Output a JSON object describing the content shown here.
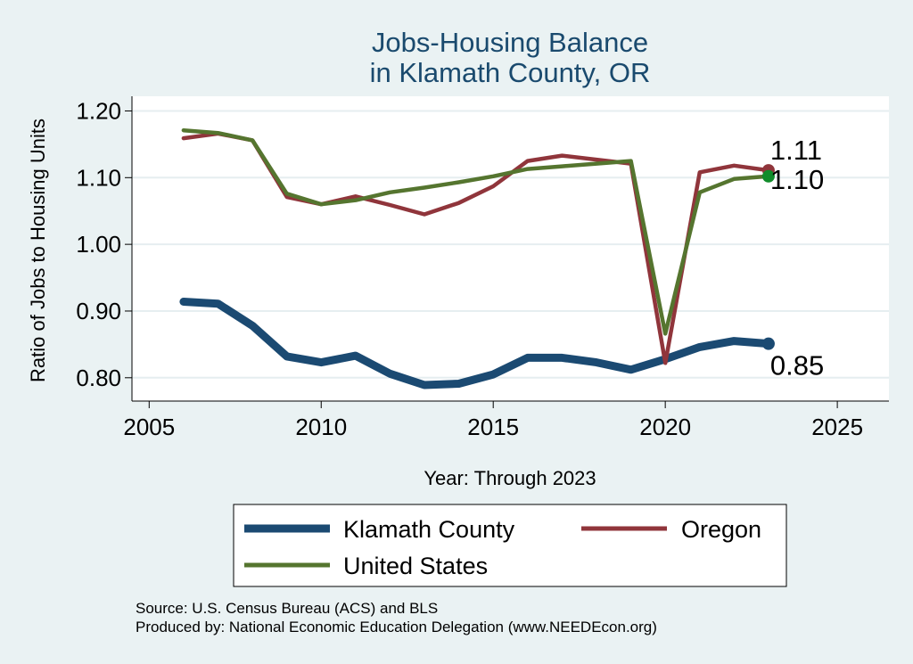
{
  "chart_data": {
    "type": "line",
    "title_lines": [
      "Jobs-Housing Balance",
      "in Klamath County, OR"
    ],
    "xlabel": "Year: Through 2023",
    "ylabel": "Ratio of Jobs to Housing Units",
    "xlim": [
      2004.5,
      2026.5
    ],
    "ylim": [
      0.765,
      1.222
    ],
    "x_ticks": [
      2005,
      2010,
      2015,
      2020,
      2025
    ],
    "y_ticks": [
      0.8,
      0.9,
      1.0,
      1.1,
      1.2
    ],
    "y_tick_labels": [
      "0.80",
      "0.90",
      "1.00",
      "1.10",
      "1.20"
    ],
    "grid": true,
    "x": [
      2006,
      2007,
      2008,
      2009,
      2010,
      2011,
      2012,
      2013,
      2014,
      2015,
      2016,
      2017,
      2018,
      2019,
      2020,
      2021,
      2022,
      2023
    ],
    "series": [
      {
        "name": "Klamath County",
        "color": "#1b4a72",
        "values": [
          0.914,
          0.911,
          0.878,
          0.832,
          0.823,
          0.833,
          0.806,
          0.789,
          0.791,
          0.805,
          0.83,
          0.83,
          0.823,
          0.812,
          0.828,
          0.846,
          0.855,
          0.851
        ],
        "end_label": "0.85"
      },
      {
        "name": "Oregon",
        "color": "#90353b",
        "values": [
          1.159,
          1.166,
          1.156,
          1.071,
          1.06,
          1.072,
          1.059,
          1.045,
          1.062,
          1.087,
          1.125,
          1.133,
          1.127,
          1.121,
          0.822,
          1.108,
          1.118,
          1.111
        ],
        "end_label": "1.11"
      },
      {
        "name": "United States",
        "color": "#55752f",
        "values": [
          1.171,
          1.167,
          1.156,
          1.076,
          1.06,
          1.066,
          1.078,
          1.085,
          1.093,
          1.102,
          1.113,
          1.117,
          1.121,
          1.125,
          0.866,
          1.078,
          1.098,
          1.102
        ],
        "end_label": "1.10"
      }
    ],
    "legend": {
      "position": "bottom",
      "items": [
        "Klamath County",
        "Oregon",
        "United States"
      ]
    },
    "notes": [
      "Source: U.S. Census Bureau (ACS) and BLS",
      "Produced by: National Economic Education Delegation (www.NEEDEcon.org)"
    ]
  },
  "colors": {
    "background": "#eaf2f3",
    "plot_background": "#ffffff",
    "grid": "#e6eef0",
    "title": "#1a4a6e",
    "endpoint_us": "#118c2a"
  }
}
